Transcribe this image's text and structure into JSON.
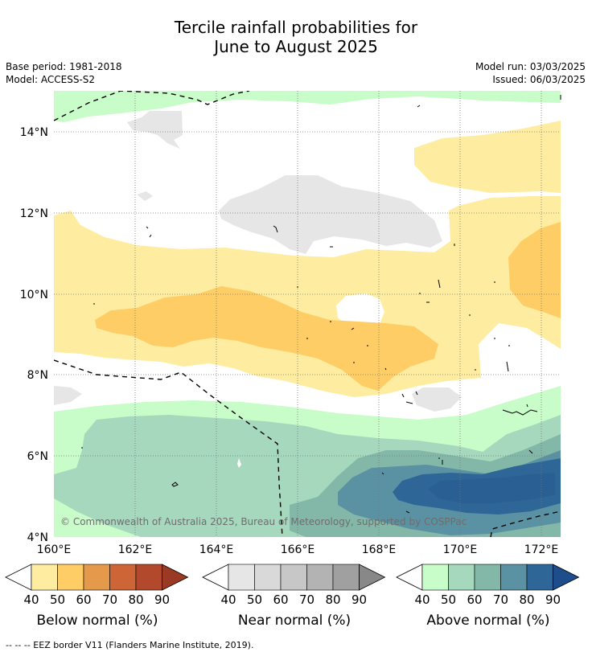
{
  "title_line1": "Tercile rainfall probabilities for",
  "title_line2": "June to August 2025",
  "base_period": "Base period: 1981-2018",
  "model": "Model: ACCESS-S2",
  "model_run": "Model run: 03/03/2025",
  "issued": "Issued: 06/03/2025",
  "copyright": "© Commonwealth of Australia 2025, Bureau of Meteorology, supported by COSPPac",
  "footnote": "--  --  -- EEZ border V11 (Flanders Marine Institute, 2019).",
  "axes": {
    "x_ticks": [
      "160°E",
      "162°E",
      "164°E",
      "166°E",
      "168°E",
      "170°E",
      "172°E"
    ],
    "y_ticks": [
      "14°N",
      "12°N",
      "10°N",
      "8°N",
      "6°N",
      "4°N"
    ],
    "lon_range": [
      160,
      172.5
    ],
    "lat_range": [
      4,
      15
    ]
  },
  "colorbars": [
    {
      "label": "Below normal (%)",
      "ticks": [
        "40",
        "50",
        "60",
        "70",
        "80",
        "90"
      ],
      "colors": [
        "#ffffff",
        "#feeca0",
        "#fecd66",
        "#e5994a",
        "#cd6536",
        "#b2492d",
        "#9a3a24"
      ]
    },
    {
      "label": "Near normal (%)",
      "ticks": [
        "40",
        "50",
        "60",
        "70",
        "80",
        "90"
      ],
      "colors": [
        "#ffffff",
        "#e6e6e6",
        "#d9d9d9",
        "#c7c7c7",
        "#b3b3b3",
        "#a0a0a0",
        "#888888"
      ]
    },
    {
      "label": "Above normal (%)",
      "ticks": [
        "40",
        "50",
        "60",
        "70",
        "80",
        "90"
      ],
      "colors": [
        "#ffffff",
        "#c8fcc8",
        "#a6d8bd",
        "#83b8a8",
        "#5a92a4",
        "#2f6698",
        "#1d4d8a"
      ]
    }
  ]
}
